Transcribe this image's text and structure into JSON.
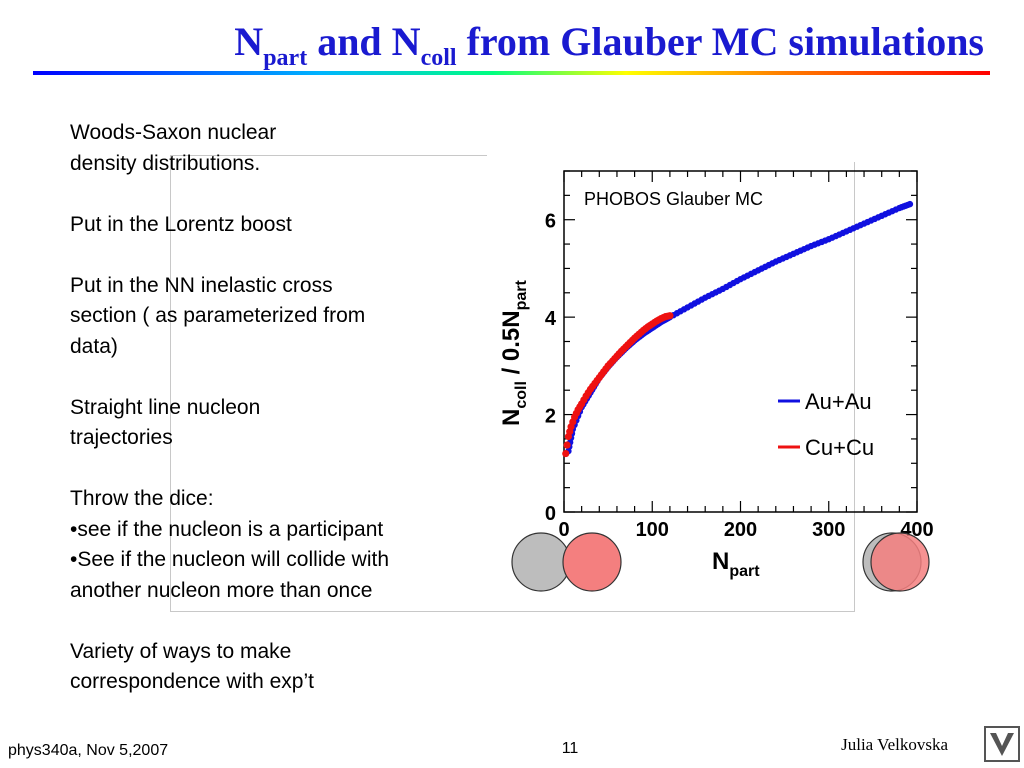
{
  "slide": {
    "title": {
      "n1": "N",
      "sub1": "part",
      "mid": " and N",
      "sub2": "coll",
      "rest": " from Glauber MC simulations"
    },
    "bullets": [
      [
        "Woods-Saxon nuclear",
        "density distributions."
      ],
      [
        "Put in the Lorentz boost"
      ],
      [
        "Put in the NN inelastic cross",
        "section ( as parameterized from",
        "data)"
      ],
      [
        "Straight line nucleon",
        "trajectories"
      ],
      [
        "Throw the dice:",
        "•see if the nucleon is a participant",
        "•See if the nucleon will collide with",
        "another nucleon more than once"
      ],
      [
        "Variety of ways to make",
        "correspondence with exp’t"
      ]
    ],
    "footer": {
      "course": "phys340a, Nov 5,2007",
      "page": "11",
      "author": "Julia Velkovska"
    }
  },
  "colors": {
    "title": "#1a1ad0",
    "auau": "#1010e0",
    "cucu": "#ee1111",
    "circle_gray": "#bdbdbd",
    "circle_red": "#f47f7f"
  },
  "chart_data": {
    "type": "scatter",
    "annotation": "PHOBOS Glauber MC",
    "xlabel": "N_part",
    "ylabel": "N_coll / 0.5N_part",
    "xlim": [
      0,
      400
    ],
    "ylim": [
      0,
      7
    ],
    "xticks": [
      "0",
      "100",
      "200",
      "300",
      "400"
    ],
    "yticks": [
      "0",
      "2",
      "4",
      "6"
    ],
    "legend_position": "bottom-right",
    "series": [
      {
        "name": "Au+Au",
        "color": "#1010e0",
        "x": [
          5,
          10,
          20,
          30,
          40,
          50,
          60,
          70,
          80,
          90,
          100,
          110,
          120,
          140,
          160,
          180,
          200,
          220,
          240,
          260,
          280,
          300,
          320,
          340,
          360,
          380,
          392
        ],
        "y": [
          1.25,
          1.7,
          2.15,
          2.45,
          2.75,
          2.98,
          3.18,
          3.36,
          3.52,
          3.66,
          3.78,
          3.9,
          4.0,
          4.2,
          4.4,
          4.58,
          4.78,
          4.96,
          5.14,
          5.3,
          5.46,
          5.6,
          5.76,
          5.92,
          6.08,
          6.24,
          6.32
        ]
      },
      {
        "name": "Cu+Cu",
        "color": "#ee1111",
        "x": [
          2,
          5,
          8,
          12,
          16,
          20,
          25,
          30,
          35,
          40,
          45,
          50,
          55,
          60,
          65,
          70,
          75,
          80,
          85,
          90,
          95,
          100,
          105,
          110,
          115,
          120
        ],
        "y": [
          1.2,
          1.55,
          1.75,
          1.95,
          2.1,
          2.22,
          2.38,
          2.52,
          2.64,
          2.76,
          2.88,
          3.0,
          3.1,
          3.2,
          3.3,
          3.39,
          3.48,
          3.57,
          3.65,
          3.73,
          3.8,
          3.86,
          3.92,
          3.97,
          4.01,
          4.03
        ]
      }
    ]
  }
}
